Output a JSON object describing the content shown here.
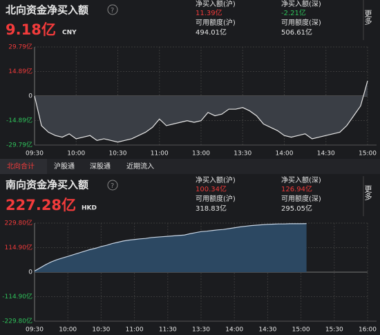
{
  "north": {
    "title": "北向资金净买入额",
    "amount": "9.18亿",
    "currency": "CNY",
    "more": "更多",
    "stats": [
      {
        "label": "净买入额(沪)",
        "value": "11.39亿"
      },
      {
        "label": "净买入额(深)",
        "value": "-2.21亿"
      },
      {
        "label": "可用额度(沪)",
        "value": "494.01亿"
      },
      {
        "label": "可用额度(深)",
        "value": "506.61亿"
      }
    ]
  },
  "tabs": [
    "北向合计",
    "沪股通",
    "深股通",
    "近期流入"
  ],
  "south": {
    "title": "南向资金净买入额",
    "amount": "227.28亿",
    "currency": "HKD",
    "stats": [
      {
        "label": "净买入额(沪)",
        "value": "100.34亿"
      },
      {
        "label": "净买入额(深)",
        "value": "126.94亿"
      },
      {
        "label": "可用额度(沪)",
        "value": "318.83亿"
      },
      {
        "label": "可用额度(深)",
        "value": "295.05亿"
      }
    ]
  },
  "chart_data": [
    {
      "type": "area",
      "color": "#e8e8e8",
      "fill": "#3a3e45",
      "categories": [
        "09:30",
        null,
        null,
        null,
        null,
        null,
        "10:00",
        null,
        null,
        null,
        null,
        null,
        "10:30",
        null,
        null,
        null,
        null,
        null,
        "11:00",
        null,
        null,
        null,
        null,
        null,
        "13:00",
        null,
        null,
        null,
        null,
        null,
        "13:30",
        null,
        null,
        null,
        null,
        null,
        "14:00",
        null,
        null,
        null,
        null,
        null,
        "14:30",
        null,
        null,
        null,
        null,
        null,
        "15:00"
      ],
      "values": [
        0,
        -18,
        -22,
        -24,
        -25,
        -23,
        -26,
        -25,
        -24,
        -27,
        -26,
        -27,
        -28,
        -27,
        -26,
        -24,
        -22,
        -19,
        -14,
        -18,
        -17,
        -16,
        -15,
        -16,
        -15,
        -10,
        -12,
        -11,
        -8,
        -8,
        -7,
        -9,
        -12,
        -17,
        -19,
        -21,
        -24,
        -25,
        -24,
        -23,
        -26,
        -25,
        -24,
        -23,
        -22,
        -18,
        -12,
        -6,
        9.18
      ],
      "ylim": [
        -29.79,
        29.79
      ],
      "yticks": [
        {
          "value": 29.79,
          "label": "29.79亿"
        },
        {
          "value": 14.89,
          "label": "14.89亿"
        },
        0,
        {
          "value": -14.89,
          "label": "-14.89亿"
        },
        {
          "value": -29.79,
          "label": "-29.79亿"
        }
      ],
      "grid": true
    },
    {
      "type": "area",
      "color": "#c8d6e6",
      "fill": "#2c4862",
      "categories": [
        "09:30",
        null,
        null,
        null,
        null,
        null,
        "10:00",
        null,
        null,
        null,
        null,
        null,
        "10:30",
        null,
        null,
        null,
        null,
        null,
        "11:00",
        null,
        null,
        null,
        null,
        null,
        "11:30",
        null,
        null,
        null,
        null,
        null,
        "13:30",
        null,
        null,
        null,
        null,
        null,
        "14:00",
        null,
        null,
        null,
        null,
        null,
        "14:30",
        null,
        null,
        null,
        null,
        null,
        "15:00",
        null,
        null,
        null,
        null,
        null,
        "15:30",
        null,
        null,
        null,
        null,
        null,
        "16:00"
      ],
      "values": [
        5,
        20,
        35,
        48,
        58,
        66,
        74,
        82,
        90,
        98,
        106,
        112,
        120,
        126,
        134,
        140,
        146,
        150,
        153,
        156,
        158,
        162,
        164,
        166,
        168,
        170,
        172,
        174,
        180,
        185,
        190,
        192,
        195,
        198,
        200,
        204,
        208,
        212,
        215,
        218,
        220,
        222,
        224,
        225,
        226,
        226,
        227,
        227,
        227,
        227.28,
        null,
        null,
        null,
        null,
        null,
        null,
        null,
        null,
        null,
        null,
        null
      ],
      "ylim": [
        -229.8,
        229.8
      ],
      "yticks": [
        {
          "value": 229.8,
          "label": "229.80亿"
        },
        {
          "value": 114.9,
          "label": "114.90亿"
        },
        0,
        {
          "value": -114.9,
          "label": "-114.90亿"
        },
        {
          "value": -229.8,
          "label": "-229.80亿"
        }
      ],
      "grid": true
    }
  ]
}
